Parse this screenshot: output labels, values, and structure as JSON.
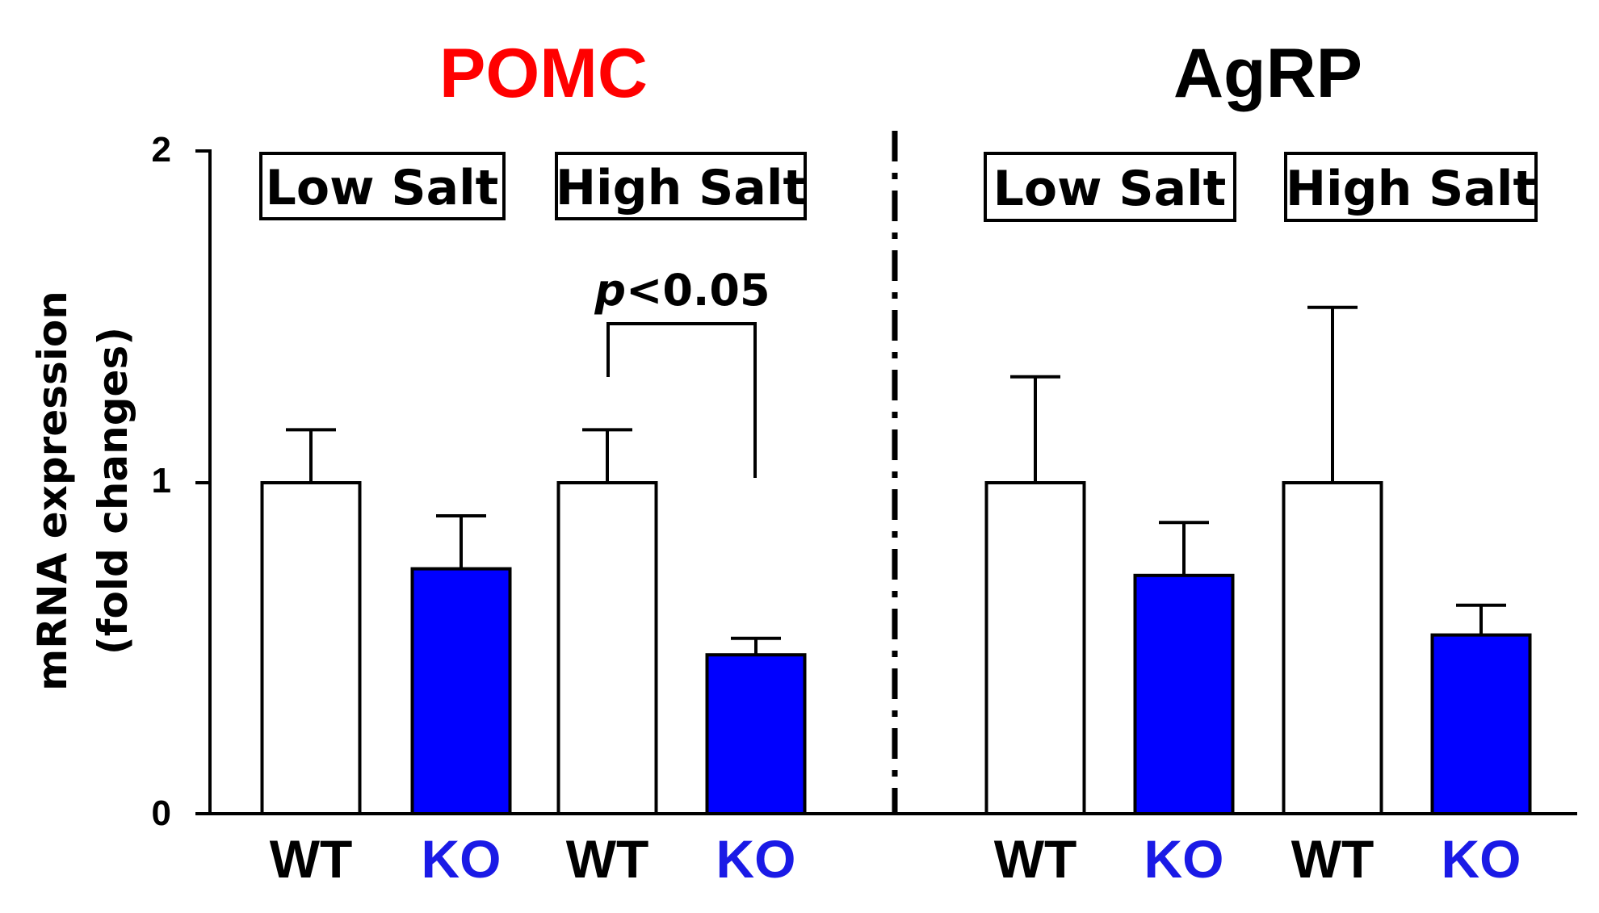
{
  "chart_data": {
    "type": "bar",
    "ylabel_line1": "mRNA expression",
    "ylabel_line2": "(fold changes)",
    "ylim": [
      0,
      2
    ],
    "yticks": [
      "0",
      "1",
      "2"
    ],
    "colors": {
      "WT": "#ffffff",
      "KO": "#0000ff",
      "wt_label": "#000000",
      "ko_label": "#1a1ae6",
      "pomc_title": "#ff0000",
      "agrp_title": "#000000"
    },
    "panels": [
      {
        "title": "POMC",
        "conditions": [
          "Low Salt",
          "High Salt"
        ],
        "categories": [
          "WT",
          "KO",
          "WT",
          "KO"
        ],
        "values": [
          1.0,
          0.74,
          1.0,
          0.48
        ],
        "errors": [
          0.16,
          0.16,
          0.16,
          0.05
        ],
        "significance": {
          "label_prefix": "p",
          "label_rest": "<0.05",
          "between": [
            2,
            3
          ]
        }
      },
      {
        "title": "AgRP",
        "conditions": [
          "Low Salt",
          "High Salt"
        ],
        "categories": [
          "WT",
          "KO",
          "WT",
          "KO"
        ],
        "values": [
          1.0,
          0.72,
          1.0,
          0.54
        ],
        "errors": [
          0.32,
          0.16,
          0.53,
          0.09
        ]
      }
    ]
  }
}
